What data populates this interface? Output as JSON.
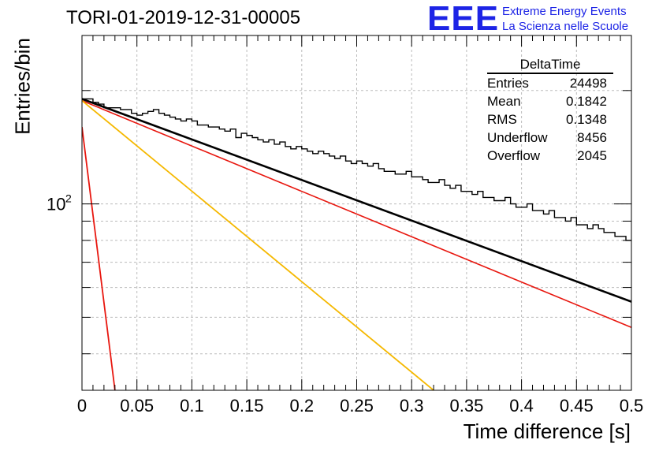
{
  "header": {
    "title": "TORI-01-2019-12-31-00005",
    "logo_text": "EEE",
    "logo_line1": "Extreme Energy Events",
    "logo_line2": "La Scienza nelle Scuole",
    "logo_color": "#1d24e6"
  },
  "stats": {
    "title": "DeltaTime",
    "rows": [
      {
        "label": "Entries",
        "value": "24498"
      },
      {
        "label": "Mean",
        "value": "0.1842"
      },
      {
        "label": "RMS",
        "value": "0.1348"
      },
      {
        "label": "Underflow",
        "value": "8456"
      },
      {
        "label": "Overflow",
        "value": "2045"
      }
    ]
  },
  "chart_data": {
    "type": "line",
    "title": "TORI-01-2019-12-31-00005",
    "xlabel": "Time difference [s]",
    "ylabel": "Entries/bin",
    "xlim": [
      0,
      0.5
    ],
    "ylim": [
      32,
      280
    ],
    "yscale": "log",
    "grid": true,
    "x_ticks": [
      "0",
      "0.05",
      "0.1",
      "0.15",
      "0.2",
      "0.25",
      "0.3",
      "0.35",
      "0.4",
      "0.45",
      "0.5"
    ],
    "y_tick_label": "10^2",
    "y_tick_value": 100,
    "colors": {
      "histogram": "#000000",
      "fit_total": "#000000",
      "fit_red": "#e8170f",
      "fit_orange": "#f5b800"
    },
    "histogram": {
      "name": "DeltaTime",
      "bin_width": 0.005,
      "values": [
        190,
        190,
        186,
        184,
        180,
        180,
        180,
        178,
        178,
        174,
        172,
        174,
        176,
        178,
        174,
        172,
        170,
        168,
        166,
        168,
        166,
        162,
        162,
        160,
        160,
        158,
        156,
        158,
        150,
        154,
        152,
        150,
        148,
        146,
        148,
        144,
        146,
        142,
        140,
        142,
        140,
        138,
        136,
        138,
        136,
        134,
        132,
        134,
        130,
        128,
        130,
        128,
        126,
        128,
        124,
        122,
        122,
        120,
        120,
        122,
        118,
        118,
        116,
        114,
        114,
        116,
        112,
        110,
        112,
        108,
        108,
        106,
        108,
        104,
        104,
        102,
        102,
        104,
        100,
        98,
        98,
        100,
        96,
        96,
        94,
        96,
        92,
        92,
        90,
        92,
        88,
        88,
        86,
        88,
        86,
        84,
        84,
        82,
        82,
        80
      ]
    },
    "series": [
      {
        "x": [
          0,
          0.5
        ],
        "values": [
          190,
          55
        ]
      },
      {
        "x": [
          0,
          0.5
        ],
        "values": [
          188,
          47
        ]
      },
      {
        "x": [
          0,
          0.03
        ],
        "values": [
          160,
          32
        ]
      },
      {
        "x": [
          0,
          0.32
        ],
        "values": [
          188,
          32
        ]
      }
    ]
  }
}
